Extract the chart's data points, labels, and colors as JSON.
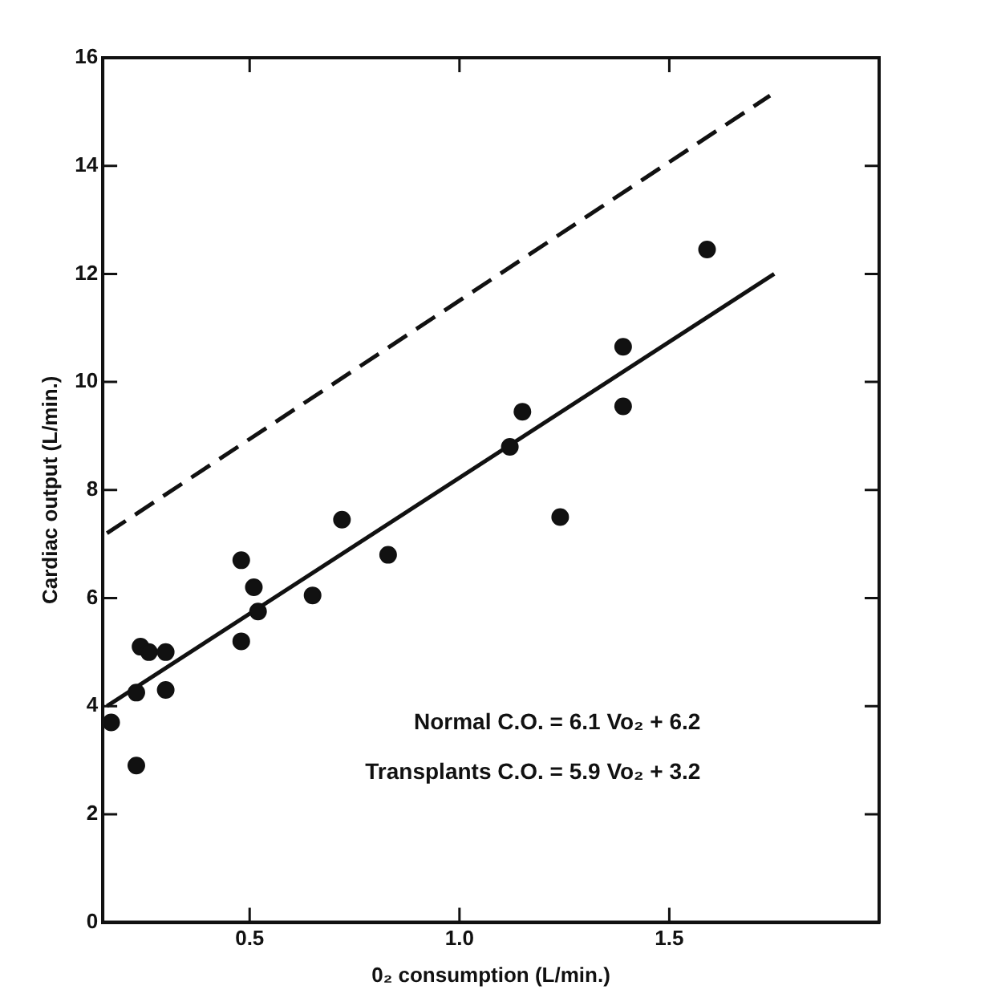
{
  "chart_data": {
    "type": "scatter",
    "xlabel": "0₂ consumption (L/min.)",
    "ylabel": "Cardiac output (L/min.)",
    "x": [
      0.17,
      0.23,
      0.23,
      0.24,
      0.26,
      0.3,
      0.3,
      0.48,
      0.48,
      0.51,
      0.52,
      0.65,
      0.72,
      0.83,
      1.12,
      1.15,
      1.59,
      1.39,
      1.39,
      1.24
    ],
    "series": [
      {
        "color": "#111111",
        "values": [
          3.7,
          2.9,
          4.25,
          5.1,
          5.0,
          5.0,
          4.3,
          6.7,
          5.2,
          6.2,
          5.75,
          6.05,
          7.45,
          6.8,
          8.8,
          9.45,
          12.45,
          10.65,
          9.55,
          7.5
        ]
      },
      {
        "type": "line",
        "color": "#111111",
        "x": [
          0.16,
          1.75
        ],
        "values": [
          4.0,
          12.0
        ],
        "marker": "none",
        "line_style": "solid"
      },
      {
        "type": "line",
        "color": "#111111",
        "x": [
          0.16,
          1.74
        ],
        "values": [
          7.2,
          15.3
        ],
        "marker": "none",
        "line_style": "dashed"
      }
    ],
    "xlim": [
      0.15,
      2.0
    ],
    "xticks": [
      {
        "value": 0.5,
        "label": "0.5"
      },
      {
        "value": 1.0,
        "label": "1.0"
      },
      1.5
    ],
    "ylim": [
      0,
      16
    ],
    "yticks": [
      0,
      2,
      4,
      6,
      8,
      10,
      12,
      14,
      16
    ],
    "grid": false,
    "legend": false,
    "marker": "circle",
    "annotations": [
      "Normal C.O. = 6.1 Vo₂ + 6.2",
      "Transplants C.O. = 5.9 Vo₂ + 3.2"
    ]
  }
}
